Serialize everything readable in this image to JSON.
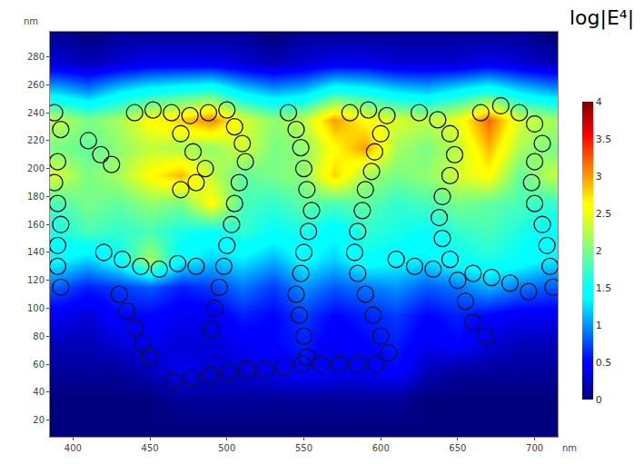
{
  "chart_data": {
    "type": "heatmap",
    "colorbar_title": "log|E⁴|",
    "xlabel": "nm",
    "ylabel": "nm",
    "xlim": [
      385,
      715
    ],
    "xticks": [
      400,
      450,
      500,
      550,
      600,
      650,
      700
    ],
    "ylim": [
      8,
      298
    ],
    "yticks": [
      20,
      40,
      60,
      80,
      100,
      120,
      140,
      160,
      180,
      200,
      220,
      240,
      260,
      280
    ],
    "zlim": [
      0,
      4
    ],
    "zticks": [
      0,
      0.5,
      1,
      1.5,
      2,
      2.5,
      3,
      3.5,
      4
    ],
    "x": [
      390,
      410,
      430,
      450,
      470,
      490,
      510,
      530,
      550,
      570,
      590,
      610,
      630,
      650,
      670,
      690,
      710
    ],
    "y": [
      15,
      35,
      55,
      75,
      95,
      115,
      135,
      155,
      175,
      195,
      215,
      235,
      255,
      275,
      295
    ],
    "cells": [
      [
        0,
        0,
        0,
        0,
        0,
        0,
        0,
        0,
        0,
        0,
        0,
        0,
        0,
        0,
        0,
        0,
        0
      ],
      [
        0,
        0,
        0,
        0,
        0.1,
        0.1,
        0.1,
        0.1,
        0.1,
        0.1,
        0.1,
        0.1,
        0,
        0,
        0,
        0,
        0
      ],
      [
        0.1,
        0.1,
        0.1,
        0.2,
        0.4,
        0.3,
        0.3,
        0.4,
        0.5,
        0.4,
        0.4,
        0.5,
        0.2,
        0.1,
        0.1,
        0.1,
        0.1
      ],
      [
        0.2,
        0.2,
        0.3,
        0.4,
        0.3,
        0.3,
        0.4,
        0.5,
        0.6,
        0.4,
        0.5,
        0.6,
        0.4,
        0.5,
        0.3,
        0.2,
        0.2
      ],
      [
        0.4,
        0.3,
        0.5,
        0.5,
        0.4,
        0.4,
        0.6,
        0.5,
        0.7,
        0.5,
        0.6,
        0.7,
        0.5,
        0.6,
        0.5,
        0.4,
        0.4
      ],
      [
        0.8,
        0.6,
        0.7,
        0.8,
        0.6,
        0.7,
        0.9,
        0.7,
        1.0,
        0.8,
        0.9,
        1.0,
        0.8,
        0.9,
        1.1,
        0.9,
        0.8
      ],
      [
        1.4,
        1.2,
        1.5,
        2.2,
        1.4,
        1.2,
        1.3,
        1.1,
        1.4,
        1.2,
        1.5,
        1.4,
        1.3,
        1.5,
        1.6,
        1.5,
        1.3
      ],
      [
        1.6,
        1.8,
        1.7,
        1.8,
        1.6,
        1.5,
        1.7,
        1.5,
        1.6,
        1.4,
        1.7,
        1.6,
        1.5,
        1.7,
        1.8,
        1.6,
        1.5
      ],
      [
        1.8,
        2.0,
        1.9,
        2.1,
        2.0,
        2.6,
        1.8,
        1.7,
        1.9,
        1.8,
        1.9,
        1.7,
        1.8,
        2.0,
        1.9,
        1.8,
        1.7
      ],
      [
        2.4,
        2.0,
        2.2,
        2.6,
        2.9,
        2.3,
        1.9,
        2.0,
        2.1,
        2.8,
        2.2,
        2.0,
        2.1,
        2.4,
        2.6,
        1.9,
        2.3
      ],
      [
        2.0,
        1.9,
        2.1,
        2.3,
        2.2,
        2.1,
        2.4,
        2.0,
        2.1,
        2.6,
        3.0,
        2.2,
        2.0,
        2.3,
        2.9,
        2.2,
        2.0
      ],
      [
        2.3,
        2.0,
        2.2,
        2.6,
        2.8,
        3.1,
        2.4,
        2.1,
        2.3,
        3.0,
        2.6,
        2.4,
        2.3,
        2.5,
        3.2,
        2.4,
        2.2
      ],
      [
        1.2,
        1.0,
        1.3,
        1.5,
        1.6,
        1.7,
        1.3,
        1.1,
        1.2,
        1.6,
        1.5,
        1.3,
        1.2,
        1.4,
        1.6,
        1.3,
        1.1
      ],
      [
        0.3,
        0.2,
        0.3,
        0.4,
        0.4,
        0.4,
        0.3,
        0.2,
        0.3,
        0.4,
        0.4,
        0.3,
        0.3,
        0.3,
        0.4,
        0.3,
        0.2
      ],
      [
        0.1,
        0,
        0.1,
        0.1,
        0.1,
        0.1,
        0.1,
        0,
        0.1,
        0.1,
        0.1,
        0.1,
        0.1,
        0.1,
        0.1,
        0.1,
        0
      ]
    ],
    "particles": {
      "marker": "circle-open",
      "color": "#141428",
      "x": [
        388,
        392,
        390,
        388,
        390,
        392,
        390,
        390,
        392,
        410,
        418,
        425,
        440,
        452,
        464,
        476,
        488,
        500,
        470,
        478,
        486,
        480,
        470,
        505,
        510,
        512,
        508,
        505,
        503,
        500,
        498,
        495,
        492,
        490,
        540,
        545,
        548,
        550,
        552,
        555,
        553,
        550,
        548,
        545,
        547,
        550,
        552,
        580,
        592,
        604,
        600,
        596,
        594,
        590,
        588,
        585,
        583,
        585,
        590,
        595,
        600,
        605,
        625,
        637,
        645,
        648,
        645,
        640,
        638,
        640,
        645,
        650,
        655,
        660,
        668,
        665,
        678,
        690,
        700,
        705,
        700,
        698,
        700,
        705,
        708,
        710,
        712,
        465,
        477,
        489,
        501,
        513,
        525,
        537,
        549,
        561,
        573,
        585,
        597,
        420,
        432,
        444,
        456,
        468,
        480,
        610,
        622,
        634,
        660,
        672,
        684,
        696,
        430,
        435,
        440,
        445,
        450
      ],
      "y": [
        240,
        228,
        205,
        190,
        175,
        160,
        145,
        130,
        115,
        220,
        210,
        203,
        240,
        242,
        240,
        238,
        240,
        242,
        225,
        212,
        200,
        190,
        185,
        230,
        218,
        205,
        190,
        175,
        160,
        145,
        130,
        115,
        100,
        85,
        240,
        228,
        215,
        200,
        185,
        170,
        155,
        140,
        125,
        110,
        95,
        80,
        65,
        240,
        242,
        238,
        225,
        212,
        198,
        185,
        170,
        155,
        140,
        125,
        110,
        95,
        80,
        68,
        240,
        235,
        225,
        210,
        195,
        180,
        165,
        150,
        135,
        120,
        105,
        90,
        80,
        240,
        245,
        240,
        232,
        218,
        205,
        190,
        175,
        160,
        145,
        130,
        115,
        48,
        50,
        52,
        54,
        56,
        56,
        58,
        60,
        60,
        60,
        60,
        60,
        140,
        135,
        130,
        128,
        132,
        130,
        135,
        130,
        128,
        125,
        122,
        118,
        112,
        110,
        98,
        86,
        75,
        65
      ]
    }
  }
}
